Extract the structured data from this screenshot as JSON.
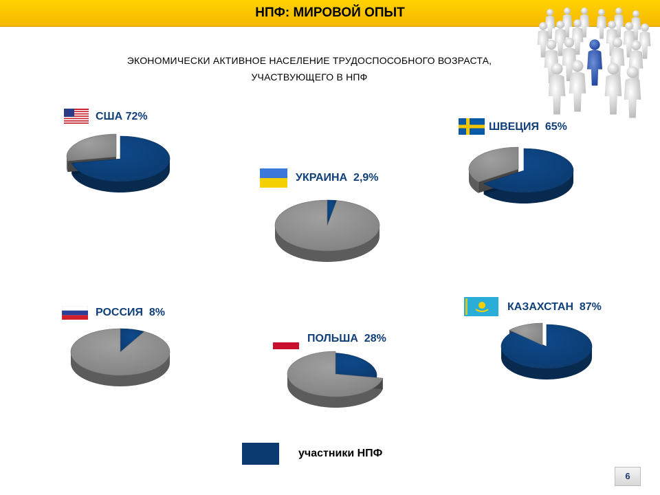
{
  "header": {
    "title": "НПФ: МИРОВОЙ ОПЫТ"
  },
  "subtitle": {
    "line1": "ЭКОНОМИЧЕСКИ АКТИВНОЕ НАСЕЛЕНИЕ ТРУДОСПОСОБНОГО ВОЗРАСТА,",
    "line2": "УЧАСТВУЮЩЕГО В НПФ"
  },
  "colors": {
    "participants": "#0b3a6e",
    "rest": "#808080",
    "accent": "#f5b800"
  },
  "chart_data": {
    "type": "pie",
    "series": [
      {
        "country": "США",
        "label": "США 72%",
        "participants_pct": 72
      },
      {
        "country": "ШВЕЦИЯ",
        "label": "ШВЕЦИЯ  65%",
        "participants_pct": 65
      },
      {
        "country": "УКРАИНА",
        "label": "УКРАИНА  2,9%",
        "participants_pct": 2.9
      },
      {
        "country": "РОССИЯ",
        "label": "РОССИЯ  8%",
        "participants_pct": 8
      },
      {
        "country": "ПОЛЬША",
        "label": "ПОЛЬША  28%",
        "participants_pct": 28
      },
      {
        "country": "КАЗАХСТАН",
        "label": "КАЗАХСТАН  87%",
        "participants_pct": 87
      }
    ],
    "legend": "участники НПФ"
  },
  "footer": {
    "page_number": "6"
  }
}
